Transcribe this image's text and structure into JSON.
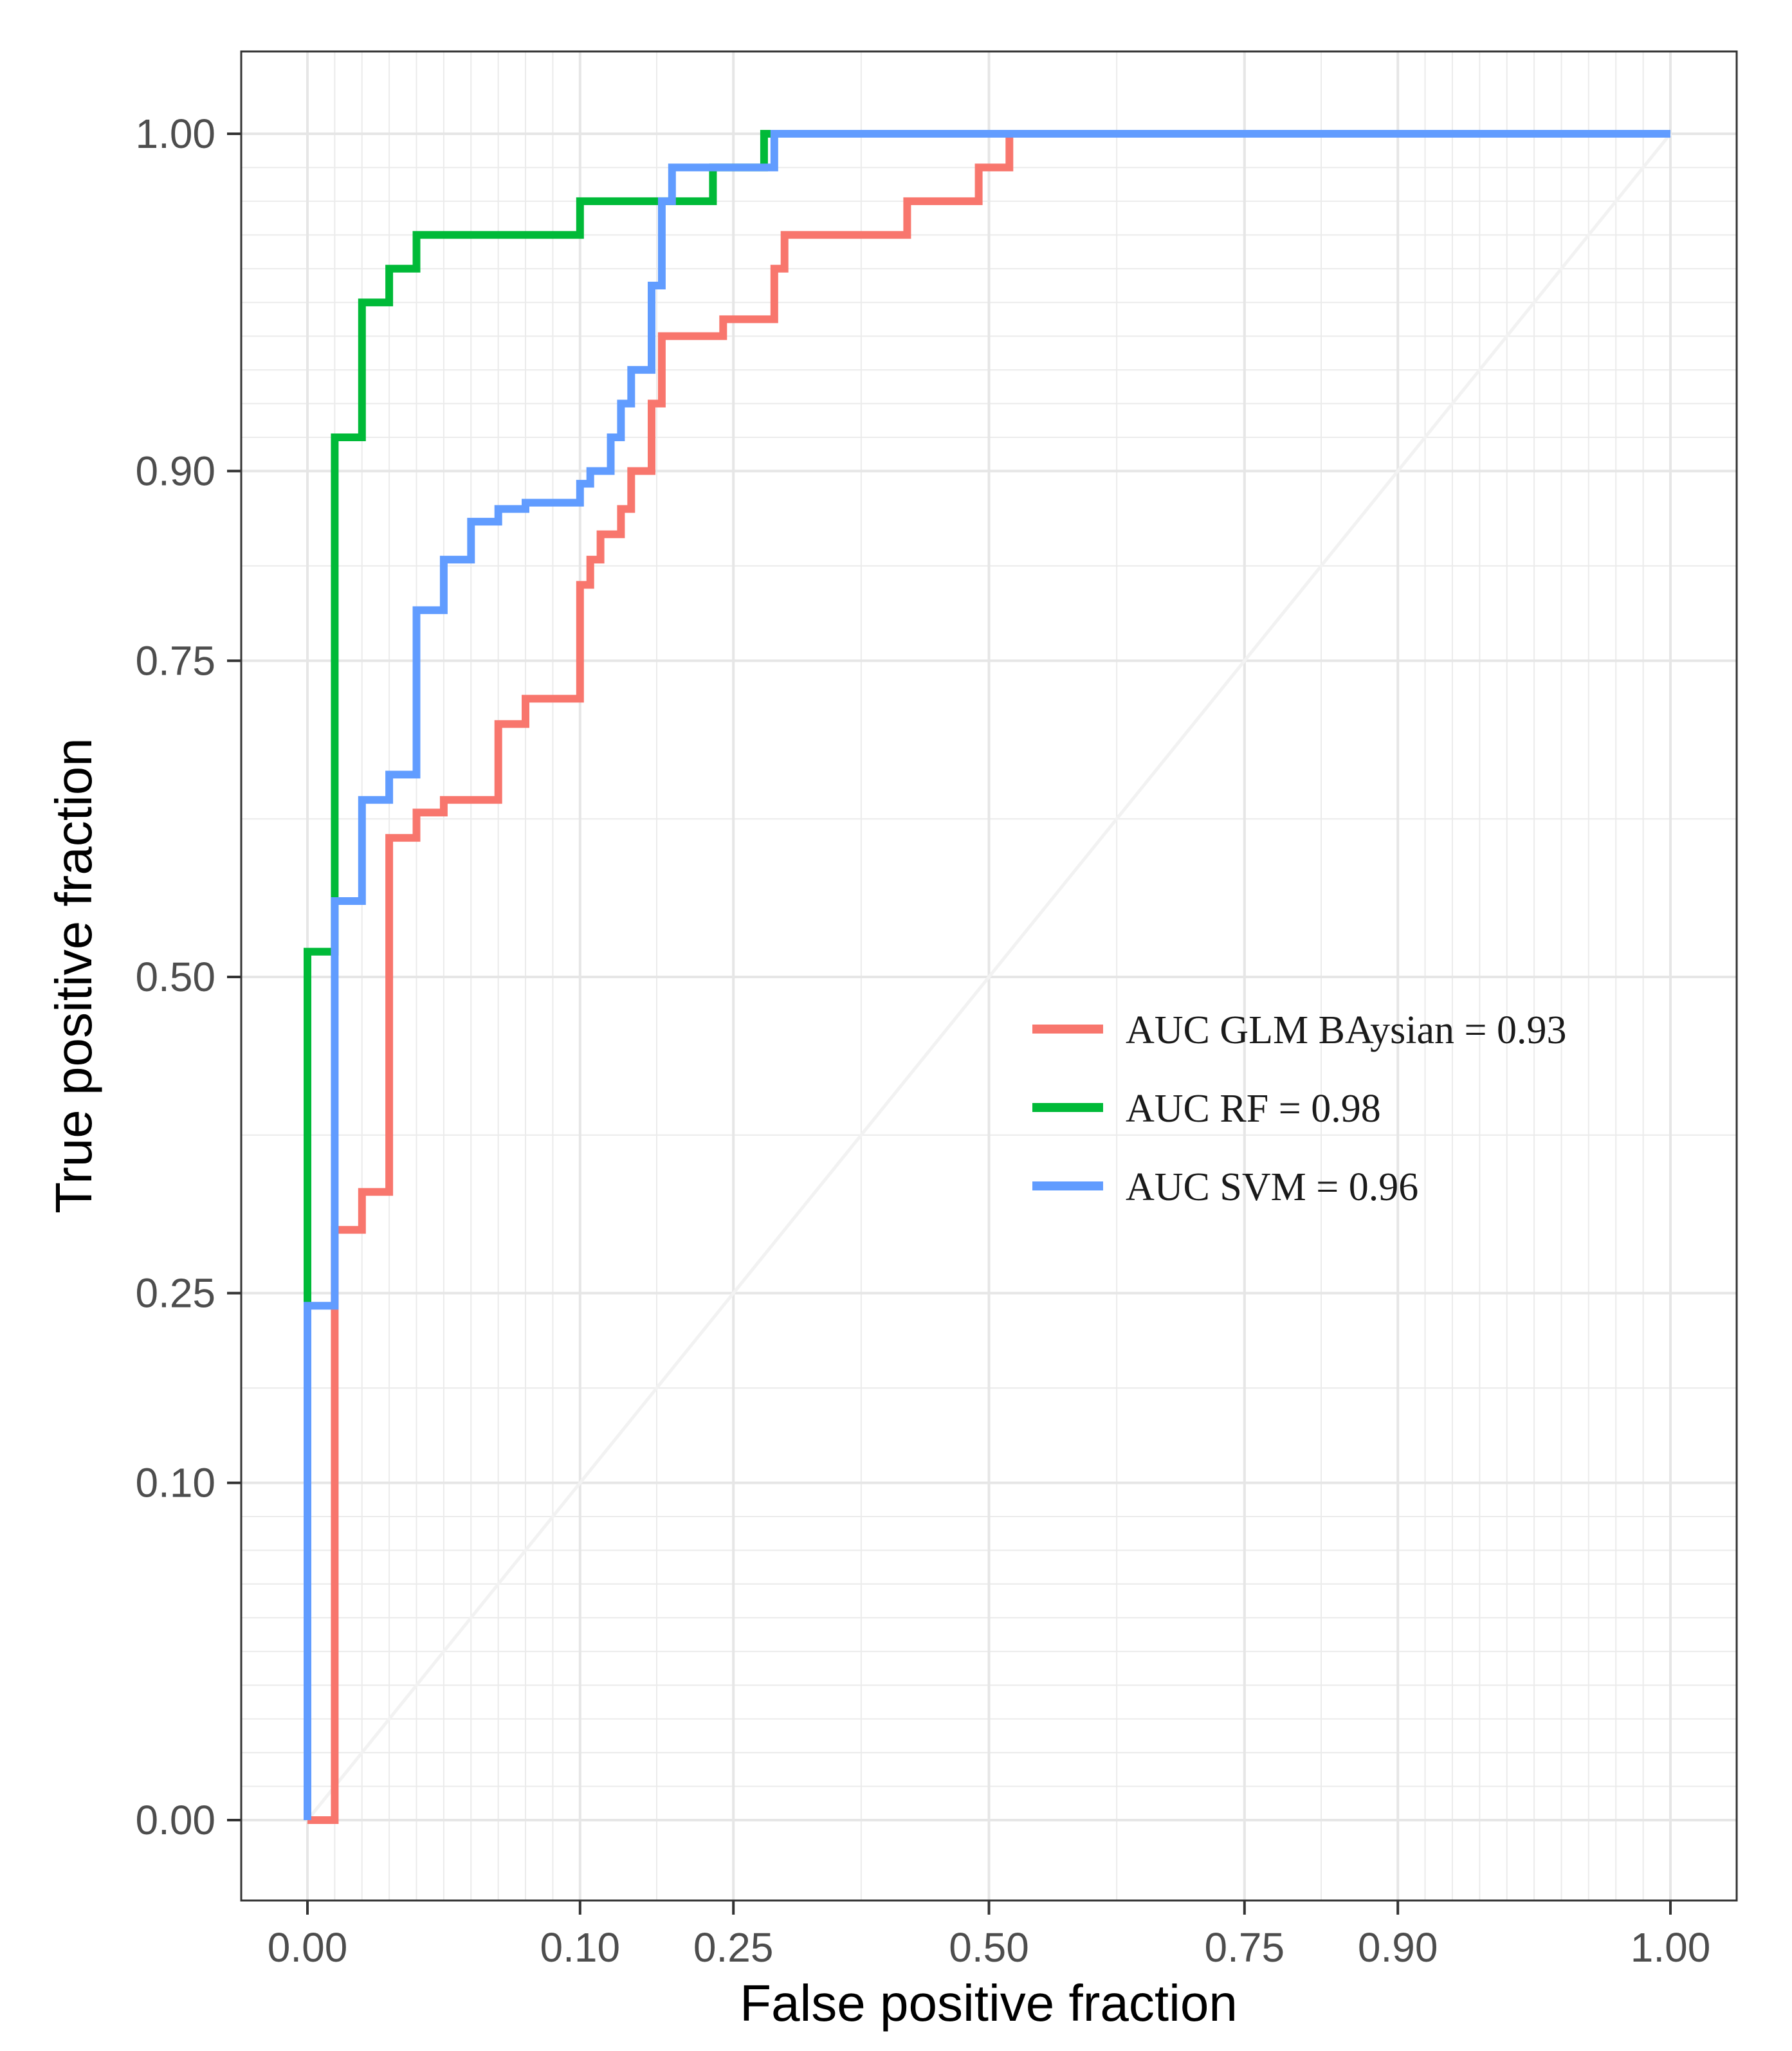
{
  "chart_data": {
    "type": "line",
    "xlabel": "False positive fraction",
    "ylabel": "True positive fraction",
    "x_ticks": [
      0,
      0.1,
      0.25,
      0.5,
      0.75,
      0.9,
      1
    ],
    "x_tick_labels": [
      "0.00",
      "0.10",
      "0.25",
      "0.50",
      "0.75",
      "0.90",
      "1.00"
    ],
    "y_ticks": [
      0,
      0.1,
      0.25,
      0.5,
      0.75,
      0.9,
      1
    ],
    "y_tick_labels": [
      "0.00",
      "0.10",
      "0.25",
      "0.50",
      "0.75",
      "0.90",
      "1.00"
    ],
    "xlim": [
      -0.05,
      1.05
    ],
    "ylim": [
      -0.05,
      1.05
    ],
    "grid": true,
    "diagonal_reference": true,
    "legend_position": "center-right",
    "series": [
      {
        "name": "AUC GLM BAysian = 0.93",
        "color": "#f8766d",
        "points": [
          [
            0.0,
            0.0
          ],
          [
            0.01,
            0.0
          ],
          [
            0.01,
            0.3
          ],
          [
            0.02,
            0.3
          ],
          [
            0.02,
            0.33
          ],
          [
            0.03,
            0.33
          ],
          [
            0.03,
            0.61
          ],
          [
            0.04,
            0.61
          ],
          [
            0.04,
            0.63
          ],
          [
            0.05,
            0.63
          ],
          [
            0.05,
            0.64
          ],
          [
            0.07,
            0.64
          ],
          [
            0.07,
            0.65
          ],
          [
            0.07,
            0.7
          ],
          [
            0.08,
            0.7
          ],
          [
            0.08,
            0.72
          ],
          [
            0.1,
            0.72
          ],
          [
            0.1,
            0.81
          ],
          [
            0.11,
            0.81
          ],
          [
            0.11,
            0.83
          ],
          [
            0.12,
            0.83
          ],
          [
            0.12,
            0.85
          ],
          [
            0.14,
            0.85
          ],
          [
            0.14,
            0.87
          ],
          [
            0.15,
            0.87
          ],
          [
            0.15,
            0.9
          ],
          [
            0.17,
            0.9
          ],
          [
            0.17,
            0.92
          ],
          [
            0.18,
            0.92
          ],
          [
            0.18,
            0.94
          ],
          [
            0.24,
            0.94
          ],
          [
            0.24,
            0.945
          ],
          [
            0.29,
            0.945
          ],
          [
            0.29,
            0.96
          ],
          [
            0.3,
            0.96
          ],
          [
            0.3,
            0.97
          ],
          [
            0.42,
            0.97
          ],
          [
            0.42,
            0.98
          ],
          [
            0.49,
            0.98
          ],
          [
            0.49,
            0.99
          ],
          [
            0.52,
            0.99
          ],
          [
            0.52,
            1.0
          ],
          [
            1.0,
            1.0
          ]
        ]
      },
      {
        "name": "AUC RF = 0.98",
        "color": "#00ba38",
        "points": [
          [
            0.0,
            0.0
          ],
          [
            0.0,
            0.24
          ],
          [
            0.0,
            0.52
          ],
          [
            0.01,
            0.52
          ],
          [
            0.01,
            0.56
          ],
          [
            0.01,
            0.91
          ],
          [
            0.02,
            0.91
          ],
          [
            0.02,
            0.95
          ],
          [
            0.03,
            0.95
          ],
          [
            0.03,
            0.96
          ],
          [
            0.04,
            0.96
          ],
          [
            0.04,
            0.97
          ],
          [
            0.1,
            0.97
          ],
          [
            0.1,
            0.98
          ],
          [
            0.23,
            0.98
          ],
          [
            0.23,
            0.99
          ],
          [
            0.28,
            0.99
          ],
          [
            0.28,
            1.0
          ],
          [
            1.0,
            1.0
          ]
        ]
      },
      {
        "name": "AUC SVM = 0.96",
        "color": "#619cff",
        "points": [
          [
            0.0,
            0.0
          ],
          [
            0.0,
            0.24
          ],
          [
            0.01,
            0.24
          ],
          [
            0.01,
            0.56
          ],
          [
            0.02,
            0.56
          ],
          [
            0.02,
            0.64
          ],
          [
            0.03,
            0.64
          ],
          [
            0.03,
            0.66
          ],
          [
            0.04,
            0.66
          ],
          [
            0.04,
            0.79
          ],
          [
            0.05,
            0.79
          ],
          [
            0.05,
            0.83
          ],
          [
            0.06,
            0.83
          ],
          [
            0.06,
            0.86
          ],
          [
            0.07,
            0.86
          ],
          [
            0.07,
            0.87
          ],
          [
            0.08,
            0.87
          ],
          [
            0.08,
            0.875
          ],
          [
            0.1,
            0.875
          ],
          [
            0.1,
            0.89
          ],
          [
            0.11,
            0.89
          ],
          [
            0.11,
            0.9
          ],
          [
            0.13,
            0.9
          ],
          [
            0.13,
            0.91
          ],
          [
            0.14,
            0.91
          ],
          [
            0.14,
            0.92
          ],
          [
            0.15,
            0.92
          ],
          [
            0.15,
            0.93
          ],
          [
            0.17,
            0.93
          ],
          [
            0.17,
            0.955
          ],
          [
            0.18,
            0.955
          ],
          [
            0.18,
            0.98
          ],
          [
            0.19,
            0.98
          ],
          [
            0.19,
            0.99
          ],
          [
            0.29,
            0.99
          ],
          [
            0.29,
            1.0
          ],
          [
            1.0,
            1.0
          ]
        ]
      }
    ]
  }
}
